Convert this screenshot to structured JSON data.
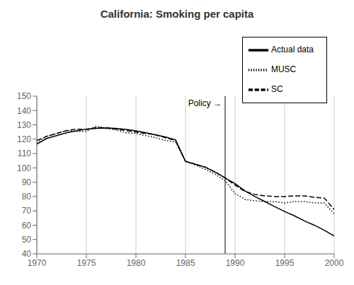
{
  "chart_data": {
    "type": "line",
    "title": "California: Smoking per capita",
    "x": [
      1970,
      1971,
      1972,
      1973,
      1974,
      1975,
      1976,
      1977,
      1978,
      1979,
      1980,
      1981,
      1982,
      1983,
      1984,
      1985,
      1986,
      1987,
      1988,
      1989,
      1990,
      1991,
      1992,
      1993,
      1994,
      1995,
      1996,
      1997,
      1998,
      1999,
      2000
    ],
    "series": [
      {
        "name": "Actual data",
        "color": "black",
        "line_style": "solid",
        "values": [
          116.5,
          120.5,
          122.5,
          124.5,
          125.8,
          127.0,
          127.5,
          127.8,
          127.5,
          126.8,
          125.8,
          124.5,
          123.0,
          121.5,
          119.5,
          104.5,
          102.5,
          100.5,
          97.0,
          93.0,
          89.0,
          84.0,
          80.0,
          76.5,
          73.0,
          69.5,
          66.5,
          63.0,
          60.0,
          56.5,
          52.5
        ]
      },
      {
        "name": "SC",
        "color": "black",
        "line_style": "dashed",
        "values": [
          119.0,
          122.0,
          124.0,
          126.0,
          127.0,
          127.0,
          128.0,
          128.0,
          127.0,
          126.0,
          125.0,
          124.0,
          123.0,
          121.0,
          119.0,
          104.5,
          102.5,
          100.5,
          97.0,
          93.0,
          88.0,
          83.5,
          81.5,
          80.5,
          80.0,
          80.0,
          80.5,
          80.5,
          79.5,
          79.0,
          71.0
        ]
      },
      {
        "name": "MUSC",
        "color": "black",
        "line_style": "dotted",
        "values": [
          117.5,
          122.0,
          124.0,
          126.0,
          125.5,
          125.5,
          129.0,
          127.5,
          126.5,
          124.5,
          124.0,
          122.5,
          121.0,
          119.0,
          118.0,
          104.5,
          102.0,
          99.0,
          95.5,
          91.0,
          82.0,
          78.0,
          77.0,
          76.5,
          76.5,
          75.5,
          76.5,
          76.5,
          75.5,
          75.5,
          68.0
        ]
      }
    ],
    "annotations": [
      {
        "x": 1989,
        "label": "Policy →",
        "color": "black"
      }
    ],
    "xlim": [
      1970,
      2000
    ],
    "ylim": [
      40,
      150
    ],
    "xticks": [
      1970,
      1975,
      1980,
      1985,
      1990,
      1995,
      2000
    ],
    "yticks": [
      40,
      50,
      60,
      70,
      80,
      90,
      100,
      110,
      120,
      130,
      140,
      150
    ],
    "grid": "x",
    "legend": "upper right"
  }
}
